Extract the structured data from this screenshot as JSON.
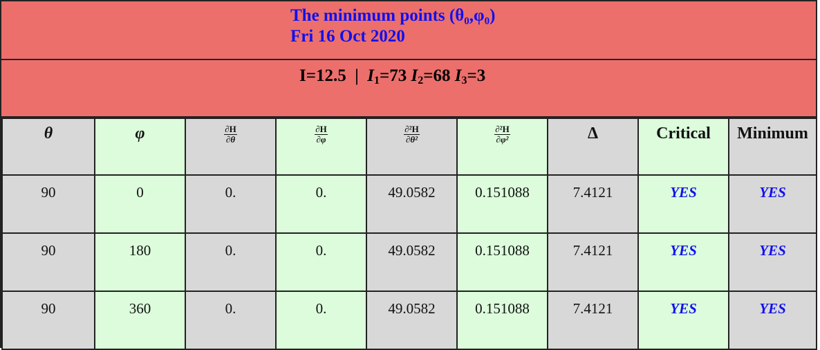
{
  "title": {
    "line1": "The minimum points (θ₀,φ₀)",
    "line2": "Fri 16 Oct 2020"
  },
  "params": {
    "I": "I=12.5",
    "sep": "|",
    "I1": "=73",
    "I2": "=68",
    "I3": "=3",
    "I_symbol": "I",
    "sub1": "1",
    "sub2": "2",
    "sub3": "3"
  },
  "headers": {
    "theta": "θ",
    "phi": "φ",
    "dH_dtheta": {
      "num": "∂H",
      "den": "∂θ"
    },
    "dH_dphi": {
      "num": "∂H",
      "den": "∂φ"
    },
    "d2H_dtheta2": {
      "num": "∂²H",
      "den": "∂θ²"
    },
    "d2H_dphi2": {
      "num": "∂²H",
      "den": "∂φ²"
    },
    "delta": "Δ",
    "critical": "Critical",
    "minimum": "Minimum"
  },
  "rows": [
    {
      "theta": "90",
      "phi": "0",
      "dH_dtheta": "0.",
      "dH_dphi": "0.",
      "d2H_dtheta2": "49.0582",
      "d2H_dphi2": "0.151088",
      "delta": "7.4121",
      "critical": "YES",
      "minimum": "YES"
    },
    {
      "theta": "90",
      "phi": "180",
      "dH_dtheta": "0.",
      "dH_dphi": "0.",
      "d2H_dtheta2": "49.0582",
      "d2H_dphi2": "0.151088",
      "delta": "7.4121",
      "critical": "YES",
      "minimum": "YES"
    },
    {
      "theta": "90",
      "phi": "360",
      "dH_dtheta": "0.",
      "dH_dphi": "0.",
      "d2H_dtheta2": "49.0582",
      "d2H_dphi2": "0.151088",
      "delta": "7.4121",
      "critical": "YES",
      "minimum": "YES"
    }
  ],
  "colors": {
    "banner": "#ec6f6c",
    "title_text": "#1010ee",
    "gray_column": "#d8d8d8",
    "green_column": "#dcfcdc",
    "yes_text": "#1010ee"
  }
}
